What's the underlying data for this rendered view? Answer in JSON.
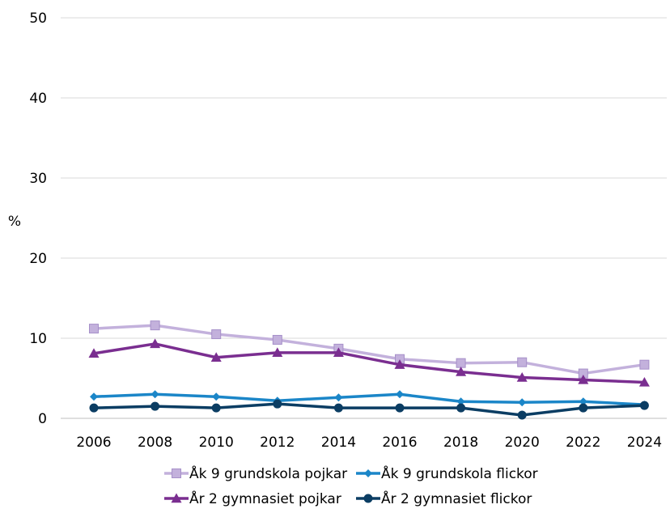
{
  "chart_data": {
    "type": "line",
    "title": "",
    "xlabel": "",
    "ylabel": "%",
    "ylim": [
      0,
      50
    ],
    "yticks": [
      0,
      10,
      20,
      30,
      40,
      50
    ],
    "categories": [
      "2006",
      "2008",
      "2010",
      "2012",
      "2014",
      "2016",
      "2018",
      "2020",
      "2022",
      "2024"
    ],
    "grid": "horizontal",
    "legend_position": "bottom",
    "series": [
      {
        "name": "Åk 9 grundskola pojkar",
        "color": "#c3b1dc",
        "marker": "square",
        "values": [
          11.2,
          11.6,
          10.5,
          9.8,
          8.7,
          7.4,
          6.9,
          7.0,
          5.6,
          6.7
        ]
      },
      {
        "name": "Åk 9 grundskola flickor",
        "color": "#1b86c8",
        "marker": "diamond",
        "values": [
          2.7,
          3.0,
          2.7,
          2.2,
          2.6,
          3.0,
          2.1,
          2.0,
          2.1,
          1.7
        ]
      },
      {
        "name": "År 2 gymnasiet pojkar",
        "color": "#7a2e90",
        "marker": "triangle",
        "values": [
          8.1,
          9.3,
          7.6,
          8.2,
          8.2,
          6.7,
          5.8,
          5.1,
          4.8,
          4.5
        ]
      },
      {
        "name": "År 2 gymnasiet flickor",
        "color": "#0b3d63",
        "marker": "circle",
        "values": [
          1.3,
          1.5,
          1.3,
          1.8,
          1.3,
          1.3,
          1.3,
          0.4,
          1.3,
          1.6
        ]
      }
    ]
  }
}
